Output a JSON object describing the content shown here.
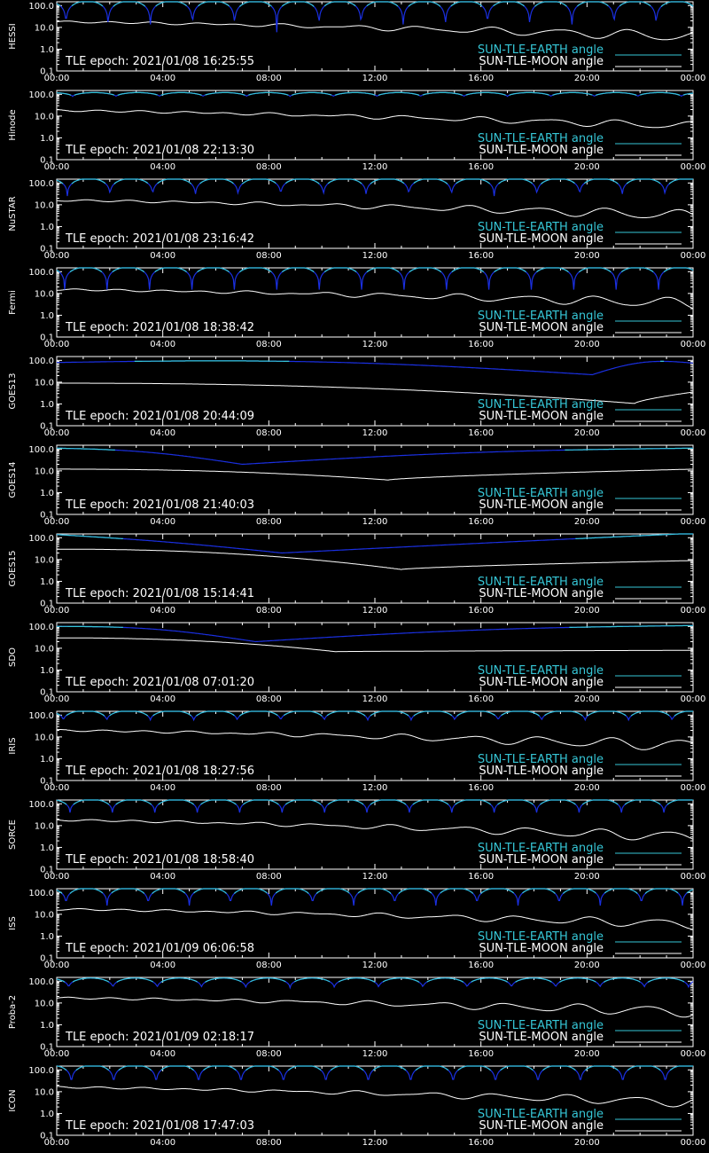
{
  "chart_data": {
    "type": "line",
    "y_scale": "log",
    "ylim": [
      0.1,
      150
    ],
    "y_ticks": [
      "100.0",
      "10.0",
      "1.0",
      "0.1"
    ],
    "x_ticks": [
      "00:00",
      "04:00",
      "08:00",
      "12:00",
      "16:00",
      "20:00",
      "00:00"
    ],
    "xlim_hours": [
      0,
      24
    ],
    "colors": {
      "earth_bright": "#36c6d6",
      "earth_dark": "#1a2fe0",
      "moon": "#ffffff",
      "frame": "#ffffff",
      "background": "#000000"
    },
    "legend": {
      "earth": "SUN-TLE-EARTH angle",
      "moon": "SUN-TLE-MOON angle",
      "placement": "bottom-right"
    },
    "panels": [
      {
        "satellite": "HESSI",
        "epoch": "TLE epoch: 2021/01/08 16:25:55",
        "earth": {
          "kind": "periodic",
          "period_h": 1.59,
          "phase_h": 0.35,
          "min": 6,
          "max": 160
        },
        "moon": {
          "start": 18,
          "end": 3.8,
          "wobble": 0.4
        }
      },
      {
        "satellite": "Hinode",
        "epoch": "TLE epoch: 2021/01/08 22:13:30",
        "earth": {
          "kind": "periodic",
          "period_h": 1.64,
          "phase_h": 0.6,
          "min": 80,
          "max": 120
        },
        "moon": {
          "start": 18,
          "end": 3.5,
          "wobble": 0.3
        }
      },
      {
        "satellite": "NuSTAR",
        "epoch": "TLE epoch: 2021/01/08 23:16:42",
        "earth": {
          "kind": "periodic",
          "period_h": 1.61,
          "phase_h": 0.4,
          "min": 25,
          "max": 160
        },
        "moon": {
          "start": 16,
          "end": 3.2,
          "wobble": 0.4
        }
      },
      {
        "satellite": "Fermi",
        "epoch": "TLE epoch: 2021/01/08 18:38:42",
        "earth": {
          "kind": "periodic",
          "period_h": 1.6,
          "phase_h": 0.3,
          "min": 15,
          "max": 160
        },
        "moon": {
          "start": 15,
          "end": 3.5,
          "wobble": 0.4
        }
      },
      {
        "satellite": "GOES13",
        "epoch": "TLE epoch: 2021/01/08 20:44:09",
        "earth": {
          "kind": "dip",
          "center_h": 20.2,
          "start": 80,
          "end": 75,
          "top": 160,
          "min": 22
        },
        "moon": {
          "kind": "dip",
          "center_h": 21.8,
          "start": 9,
          "top": 14,
          "min": 1.05,
          "end": 3.5
        }
      },
      {
        "satellite": "GOES14",
        "epoch": "TLE epoch: 2021/01/08 21:40:03",
        "earth": {
          "kind": "dip",
          "center_h": 7.0,
          "start": 110,
          "end": 110,
          "top": 165,
          "min": 20
        },
        "moon": {
          "kind": "dip",
          "center_h": 12.5,
          "start": 12,
          "top": 12,
          "min": 3.8,
          "end": 12
        }
      },
      {
        "satellite": "GOES15",
        "epoch": "TLE epoch: 2021/01/08 15:14:41",
        "earth": {
          "kind": "dip",
          "center_h": 8.5,
          "start": 140,
          "end": 160,
          "top": 165,
          "min": 20
        },
        "moon": {
          "kind": "dip",
          "center_h": 13.0,
          "start": 30,
          "top": 30,
          "min": 3.5,
          "end": 9
        }
      },
      {
        "satellite": "SDO",
        "epoch": "TLE epoch: 2021/01/08 07:01:20",
        "earth": {
          "kind": "dip",
          "center_h": 7.5,
          "start": 100,
          "end": 110,
          "top": 165,
          "min": 20
        },
        "moon": {
          "kind": "dip",
          "center_h": 10.5,
          "start": 30,
          "top": 30,
          "min": 7,
          "end": 8
        }
      },
      {
        "satellite": "IRIS",
        "epoch": "TLE epoch: 2021/01/08 18:27:56",
        "earth": {
          "kind": "periodic",
          "period_h": 1.64,
          "phase_h": 0.25,
          "min": 55,
          "max": 160
        },
        "moon": {
          "start": 20,
          "end": 4,
          "wobble": 0.45
        }
      },
      {
        "satellite": "SORCE",
        "epoch": "TLE epoch: 2021/01/08 18:58:40",
        "earth": {
          "kind": "periodic",
          "period_h": 1.6,
          "phase_h": 0.5,
          "min": 40,
          "max": 160
        },
        "moon": {
          "start": 18,
          "end": 3,
          "wobble": 0.4
        }
      },
      {
        "satellite": "ISS",
        "epoch": "TLE epoch: 2021/01/09 06:06:58",
        "earth": {
          "kind": "periodic",
          "period_h": 1.55,
          "phase_h": 0.35,
          "min": 25,
          "max": 160
        },
        "moon": {
          "start": 17,
          "end": 3.5,
          "wobble": 0.35
        }
      },
      {
        "satellite": "Proba-2",
        "epoch": "TLE epoch: 2021/01/09 02:18:17",
        "earth": {
          "kind": "periodic",
          "period_h": 1.67,
          "phase_h": 0.45,
          "min": 50,
          "max": 140
        },
        "moon": {
          "start": 17,
          "end": 4,
          "wobble": 0.4
        }
      },
      {
        "satellite": "ICON",
        "epoch": "TLE epoch: 2021/01/08 17:47:03",
        "earth": {
          "kind": "periodic",
          "period_h": 1.6,
          "phase_h": 0.55,
          "min": 18,
          "max": 165
        },
        "moon": {
          "start": 16,
          "end": 3.2,
          "wobble": 0.35
        }
      }
    ]
  }
}
